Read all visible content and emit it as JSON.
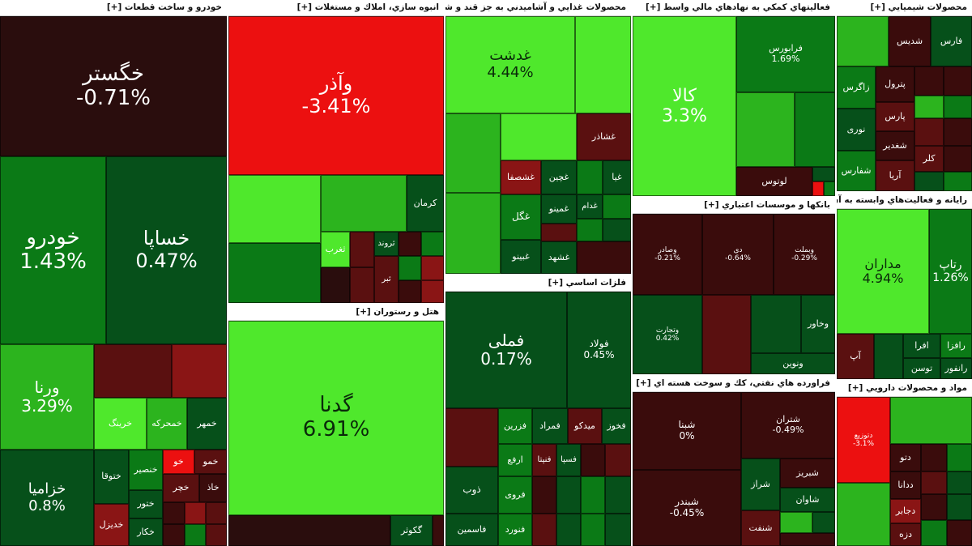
{
  "sectors": {
    "auto": "خودرو و ساخت قطعات [+]",
    "construction": "انبوه سازي، املاك و مستغلات [+]",
    "hotel": "هتل و رستوران [+]",
    "food": "محصولات غذايي و آشاميدني به جز قند و شكر [+]",
    "metals": "فلزات اساسي [+]",
    "financial": "فعاليتهاي كمكي به نهادهاي مالي واسط [+]",
    "banks": "بانكها و موسسات اعتباري [+]",
    "oil": "فراورده هاي نفتي، كك و سوخت هسته اي [+]",
    "chemical": "محصولات شيميايي [+]",
    "telecom": "رايانه و فعاليت‌هاي وابسته به آن [+]",
    "pharma": "مواد و محصولات دارويي [+]"
  },
  "tiles": {
    "khegostar": {
      "name": "خگستر",
      "pct": "-0.71%"
    },
    "khodro": {
      "name": "خودرو",
      "pct": "1.43%"
    },
    "khsapa": {
      "name": "خساپا",
      "pct": "0.47%"
    },
    "varena": {
      "name": "ورنا",
      "pct": "3.29%"
    },
    "khazamia": {
      "name": "خزامیا",
      "pct": "0.8%"
    },
    "khmohr": {
      "name": "خمهر",
      "pct": ""
    },
    "khreng": {
      "name": "خرینگ",
      "pct": ""
    },
    "khmohrke": {
      "name": "خمحرکه",
      "pct": ""
    },
    "khtoga": {
      "name": "ختوقا",
      "pct": ""
    },
    "khnasir": {
      "name": "خنصیر",
      "pct": ""
    },
    "khtor": {
      "name": "ختور",
      "pct": ""
    },
    "khdizel": {
      "name": "خدیزل",
      "pct": ""
    },
    "khkar": {
      "name": "خکار",
      "pct": ""
    },
    "khegor": {
      "name": "خو",
      "pct": ""
    },
    "khchar": {
      "name": "خچر",
      "pct": ""
    },
    "khmo": {
      "name": "خمو",
      "pct": ""
    },
    "khaz": {
      "name": "خاذ",
      "pct": ""
    },
    "vaazar": {
      "name": "وآذر",
      "pct": "-3.41%"
    },
    "kerman": {
      "name": "کرمان",
      "pct": ""
    },
    "taghrib": {
      "name": "ثغرب",
      "pct": ""
    },
    "sarvand": {
      "name": "ثروند",
      "pct": ""
    },
    "thtabar": {
      "name": "ثبر",
      "pct": ""
    },
    "gadna": {
      "name": "گدنا",
      "pct": "6.91%"
    },
    "gakoosar": {
      "name": "گکوثر",
      "pct": ""
    },
    "ghadasht": {
      "name": "غدشت",
      "pct": "4.44%"
    },
    "ghshazar": {
      "name": "غشاذر",
      "pct": ""
    },
    "ghchin": {
      "name": "غچین",
      "pct": ""
    },
    "ghshsafa": {
      "name": "غشصفا",
      "pct": ""
    },
    "ghgol": {
      "name": "غگل",
      "pct": ""
    },
    "ghminoo": {
      "name": "غمینو",
      "pct": ""
    },
    "ghdam": {
      "name": "غدام",
      "pct": ""
    },
    "ghbinoo": {
      "name": "غبینو",
      "pct": ""
    },
    "ghshahd": {
      "name": "غشهد",
      "pct": ""
    },
    "ghgia": {
      "name": "غیا",
      "pct": ""
    },
    "famli": {
      "name": "فملی",
      "pct": "0.17%"
    },
    "foolad": {
      "name": "فولاد",
      "pct": "0.45%"
    },
    "fkhooz": {
      "name": "فخوز",
      "pct": ""
    },
    "fmrad": {
      "name": "فمراد",
      "pct": ""
    },
    "fzarin": {
      "name": "فزرین",
      "pct": ""
    },
    "midko": {
      "name": "میدکو",
      "pct": ""
    },
    "arfa": {
      "name": "ارفع",
      "pct": ""
    },
    "fenta": {
      "name": "فنپتا",
      "pct": ""
    },
    "fsapa": {
      "name": "فسپا",
      "pct": ""
    },
    "zob": {
      "name": "ذوب",
      "pct": ""
    },
    "frovi": {
      "name": "فروی",
      "pct": ""
    },
    "fnoorad": {
      "name": "فنورد",
      "pct": ""
    },
    "kasmin": {
      "name": "فاسمین",
      "pct": ""
    },
    "kala": {
      "name": "کالا",
      "pct": "3.3%"
    },
    "faraboors": {
      "name": "فرابورس",
      "pct": "1.69%"
    },
    "lotus": {
      "name": "لوتوس",
      "pct": ""
    },
    "vkhavar": {
      "name": "وخاور",
      "pct": ""
    },
    "vnovin": {
      "name": "ونوین",
      "pct": ""
    },
    "vsamar": {
      "name": "وصادر",
      "pct": "-0.21%"
    },
    "dey": {
      "name": "دی",
      "pct": "-0.64%"
    },
    "vmellat": {
      "name": "وبملت",
      "pct": "-0.29%"
    },
    "vtejarat": {
      "name": "وتجارت",
      "pct": "0.42%"
    },
    "shabna": {
      "name": "شبنا",
      "pct": "0%"
    },
    "shatran": {
      "name": "شتران",
      "pct": "-0.49%"
    },
    "shbandar": {
      "name": "شبندر",
      "pct": "-0.45%"
    },
    "shbriz": {
      "name": "شبریز",
      "pct": ""
    },
    "shiraz": {
      "name": "شراز",
      "pct": ""
    },
    "shavan": {
      "name": "شاوان",
      "pct": ""
    },
    "shfat": {
      "name": "شنفت",
      "pct": ""
    },
    "fars": {
      "name": "فارس",
      "pct": ""
    },
    "shdis": {
      "name": "شدیس",
      "pct": ""
    },
    "zagros": {
      "name": "زاگرس",
      "pct": ""
    },
    "petrol": {
      "name": "پترول",
      "pct": ""
    },
    "pars": {
      "name": "پارس",
      "pct": ""
    },
    "noori": {
      "name": "نوری",
      "pct": ""
    },
    "shghadir": {
      "name": "شغدیر",
      "pct": ""
    },
    "shfars": {
      "name": "شفارس",
      "pct": ""
    },
    "arya": {
      "name": "آریا",
      "pct": ""
    },
    "kler": {
      "name": "کلر",
      "pct": ""
    },
    "madaran": {
      "name": "مداران",
      "pct": "4.94%"
    },
    "rtap": {
      "name": "رتاپ",
      "pct": "1.26%"
    },
    "afra": {
      "name": "افرا",
      "pct": ""
    },
    "rafza": {
      "name": "رافزا",
      "pct": ""
    },
    "toosan": {
      "name": "توسن",
      "pct": ""
    },
    "ranfor": {
      "name": "رانفور",
      "pct": ""
    },
    "ap": {
      "name": "آپ",
      "pct": ""
    },
    "dtoo": {
      "name": "دتو",
      "pct": ""
    },
    "dana": {
      "name": "ددانا",
      "pct": ""
    },
    "djaber": {
      "name": "دجابر",
      "pct": ""
    },
    "dzeh": {
      "name": "دزه",
      "pct": ""
    },
    "dtozi": {
      "name": "دتوزیع",
      "pct": "-3.1%"
    }
  },
  "colors": {
    "up_strong": "#4fe82c",
    "up": "#0b7a16",
    "down": "#5a1010",
    "down_strong": "#ec1010"
  }
}
